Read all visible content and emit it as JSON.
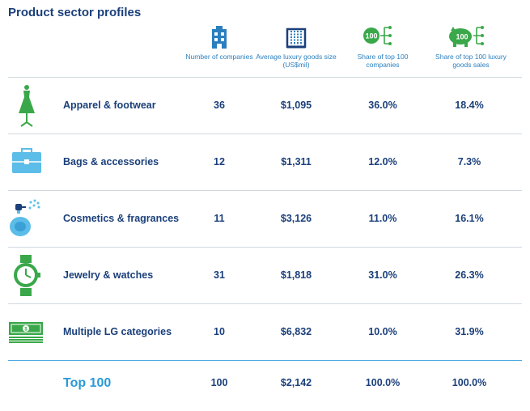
{
  "title": "Product sector profiles",
  "headers": [
    {
      "label": "Number of companies",
      "icon": "building-icon"
    },
    {
      "label": "Average luxury goods size (US$mil)",
      "icon": "abacus-icon"
    },
    {
      "label": "Share of top 100 companies",
      "icon": "share-companies-icon",
      "badge": "100"
    },
    {
      "label": "Share of top 100 luxury goods sales",
      "icon": "piggy-bank-icon",
      "badge": "100"
    }
  ],
  "rows": [
    {
      "name": "Apparel & footwear",
      "icon": "dress-icon",
      "companies": "36",
      "avg_size": "$1,095",
      "share_companies": "36.0%",
      "share_sales": "18.4%"
    },
    {
      "name": "Bags & accessories",
      "icon": "briefcase-icon",
      "companies": "12",
      "avg_size": "$1,311",
      "share_companies": "12.0%",
      "share_sales": "7.3%"
    },
    {
      "name": "Cosmetics & fragrances",
      "icon": "perfume-icon",
      "companies": "11",
      "avg_size": "$3,126",
      "share_companies": "11.0%",
      "share_sales": "16.1%"
    },
    {
      "name": "Jewelry & watches",
      "icon": "watch-icon",
      "companies": "31",
      "avg_size": "$1,818",
      "share_companies": "31.0%",
      "share_sales": "26.3%"
    },
    {
      "name": "Multiple LG categories",
      "icon": "money-stack-icon",
      "companies": "10",
      "avg_size": "$6,832",
      "share_companies": "10.0%",
      "share_sales": "31.9%"
    }
  ],
  "total": {
    "name": "Top 100",
    "companies": "100",
    "avg_size": "$2,142",
    "share_companies": "100.0%",
    "share_sales": "100.0%"
  },
  "colors": {
    "navy": "#1a3f7a",
    "blue": "#2a9ad6",
    "green": "#3aa84a",
    "light_blue": "#5bbde8"
  }
}
